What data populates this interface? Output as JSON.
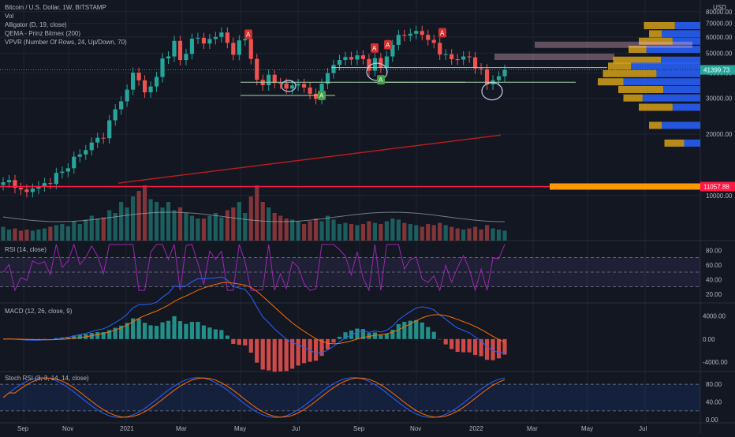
{
  "header": {
    "symbol_line": "Bitcoin / U.S. Dollar, 1W, BITSTAMP",
    "indicators": [
      "Vol",
      "Alligator (D, 19, close)",
      "QEMA - Prinz Bitmex (200)",
      "VPVR (Number Of Rows, 24, Up/Down, 70)"
    ]
  },
  "colors": {
    "background": "#131722",
    "grid": "#1f2330",
    "up": "#26a69a",
    "down": "#ef5350",
    "support": "#a5d6a7",
    "trend": "#b71c1c",
    "level": "#ff1744",
    "poc_bar": "#ff9800",
    "vp_up": "#2962ff",
    "vp_down": "#d4a017",
    "text": "#b2b5be"
  },
  "price_labels": {
    "currency": "USD",
    "current": "41399.73",
    "level": "11057.88"
  },
  "time_axis": [
    "Sep",
    "Nov",
    "2021",
    "Mar",
    "May",
    "Jul",
    "Sep",
    "Nov",
    "2022",
    "Mar",
    "May",
    "Jul"
  ],
  "markers": [
    "A",
    "A",
    "A",
    "A",
    "A",
    "A"
  ],
  "panes": {
    "rsi": {
      "title": "RSI (14, close)",
      "ticks": [
        "80.00",
        "60.00",
        "40.00",
        "20.00"
      ]
    },
    "macd": {
      "title": "MACD (12, 26, close, 9)",
      "ticks": [
        "4000.00",
        "0.00",
        "-4000.00"
      ]
    },
    "stoch": {
      "title": "Stoch RSI (3, 3, 14, 14, close)",
      "ticks": [
        "80.00",
        "40.00",
        "0.00"
      ]
    }
  },
  "chart_data": {
    "type": "candlestick",
    "symbol": "BTCUSD",
    "interval": "1W",
    "exchange": "BITSTAMP",
    "price_axis": {
      "ticks": [
        80000,
        70000,
        60000,
        50000,
        40000,
        30000,
        20000,
        10000
      ],
      "ylim": [
        6000,
        82000
      ]
    },
    "weekly_close": [
      11600,
      11900,
      10900,
      10700,
      10400,
      10800,
      11100,
      11500,
      11400,
      12900,
      13100,
      13600,
      15500,
      15900,
      16700,
      18200,
      19200,
      19100,
      23400,
      26500,
      29000,
      33100,
      40100,
      36800,
      32100,
      34300,
      38200,
      47100,
      48200,
      57500,
      46300,
      49600,
      58900,
      59500,
      55800,
      58700,
      60100,
      63200,
      56200,
      49100,
      57800,
      58700,
      46900,
      37000,
      34800,
      39200,
      35700,
      35500,
      33500,
      34700,
      35300,
      33900,
      31600,
      29800,
      35400,
      39900,
      43800,
      46300,
      47900,
      46500,
      48800,
      46800,
      41000,
      47300,
      42600,
      48200,
      54900,
      61500,
      60900,
      62300,
      64300,
      61500,
      58100,
      56200,
      49200,
      49400,
      46700,
      46500,
      48200,
      47700,
      42100,
      41700,
      35100,
      36800,
      38500,
      41400
    ],
    "volume_relative": [
      0.25,
      0.2,
      0.22,
      0.18,
      0.2,
      0.18,
      0.2,
      0.22,
      0.25,
      0.28,
      0.3,
      0.26,
      0.35,
      0.3,
      0.38,
      0.45,
      0.4,
      0.42,
      0.55,
      0.5,
      0.7,
      0.6,
      0.8,
      0.9,
      1.0,
      0.75,
      0.7,
      0.6,
      0.7,
      0.55,
      0.6,
      0.5,
      0.45,
      0.4,
      0.4,
      0.45,
      0.5,
      0.42,
      0.55,
      0.6,
      0.7,
      0.5,
      0.8,
      1.0,
      0.7,
      0.6,
      0.5,
      0.45,
      0.4,
      0.38,
      0.35,
      0.3,
      0.35,
      0.4,
      0.35,
      0.45,
      0.38,
      0.3,
      0.32,
      0.3,
      0.28,
      0.3,
      0.35,
      0.32,
      0.3,
      0.35,
      0.4,
      0.38,
      0.32,
      0.3,
      0.28,
      0.25,
      0.3,
      0.28,
      0.32,
      0.28,
      0.25,
      0.22,
      0.2,
      0.22,
      0.25,
      0.2,
      0.28,
      0.22,
      0.2,
      0.18
    ],
    "levels": {
      "current": 41399.73,
      "marked": 11057.88
    },
    "rsi_ylim": [
      10,
      90
    ],
    "macd_ylim": [
      -5500,
      6000
    ],
    "stoch_ylim": [
      -5,
      105
    ]
  }
}
